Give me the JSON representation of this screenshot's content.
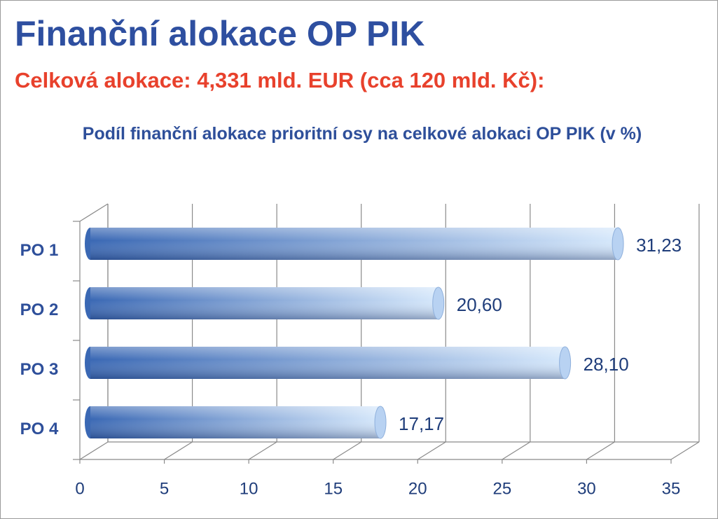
{
  "title": "Finanční alokace OP PIK",
  "subtitle": "Celková alokace: 4,331 mld. EUR (cca 120 mld. Kč):",
  "chart_data": {
    "type": "bar3d-horizontal",
    "title": "Podíl finanční alokace prioritní osy na celkové alokaci OP PIK (v %)",
    "categories": [
      "PO 1",
      "PO 2",
      "PO 3",
      "PO 4"
    ],
    "values": [
      31.23,
      20.6,
      28.1,
      17.17
    ],
    "value_labels": [
      "31,23",
      "20,60",
      "28,10",
      "17,17"
    ],
    "color": "#4a7cc8",
    "xlim": [
      0,
      35
    ],
    "xticks": [
      0,
      5,
      10,
      15,
      20,
      25,
      30,
      35
    ],
    "grid": true
  }
}
